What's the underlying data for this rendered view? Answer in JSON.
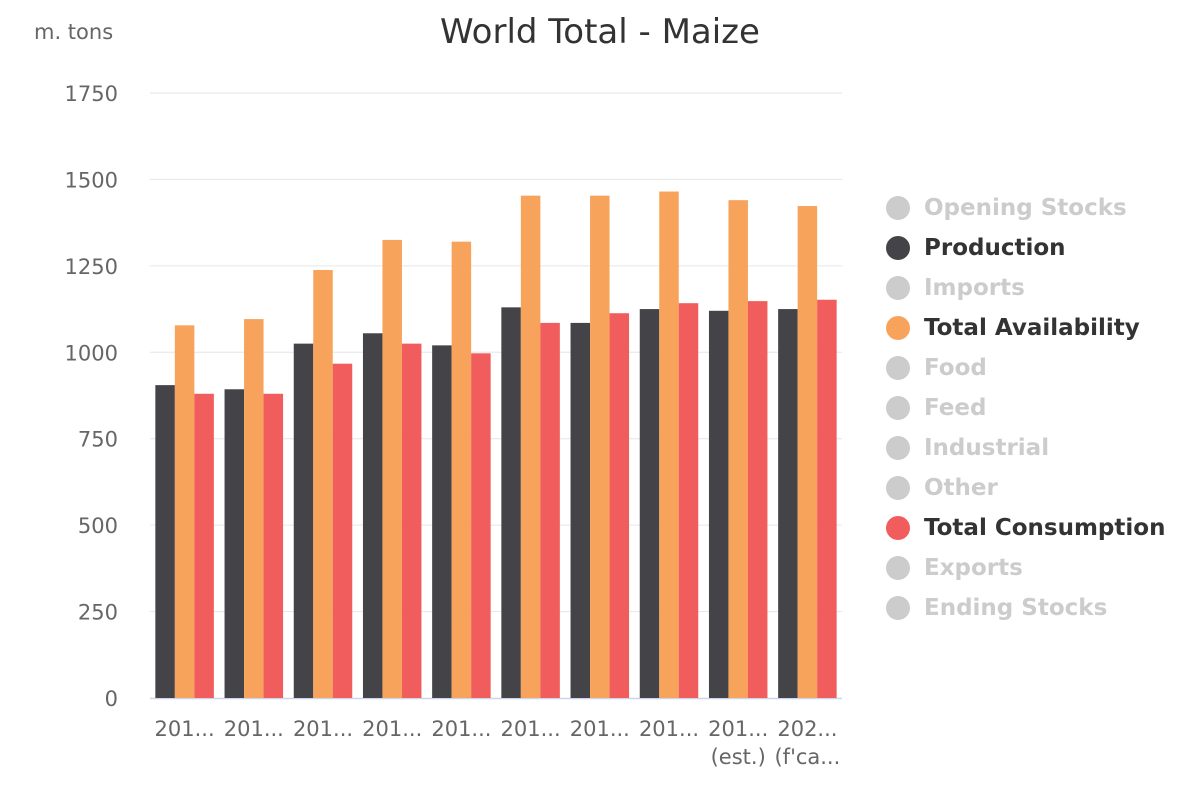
{
  "chart_data": {
    "type": "bar",
    "title": "World Total - Maize",
    "y_unit": "m. tons",
    "ylim": [
      0,
      1750
    ],
    "yticks": [
      0,
      250,
      500,
      750,
      1000,
      1250,
      1500,
      1750
    ],
    "grid": true,
    "legend_placement": "right",
    "categories": [
      [
        "201..."
      ],
      [
        "201..."
      ],
      [
        "201..."
      ],
      [
        "201..."
      ],
      [
        "201..."
      ],
      [
        "201..."
      ],
      [
        "201..."
      ],
      [
        "201..."
      ],
      [
        "201...",
        "(est.)"
      ],
      [
        "202...",
        "(f'ca..."
      ]
    ],
    "series": [
      {
        "name": "Production",
        "color": "#434348",
        "values": [
          905,
          893,
          1025,
          1055,
          1020,
          1130,
          1085,
          1125,
          1120,
          1125
        ]
      },
      {
        "name": "Total Availability",
        "color": "#f7a35c",
        "values": [
          1078,
          1096,
          1238,
          1325,
          1320,
          1453,
          1453,
          1465,
          1440,
          1423
        ]
      },
      {
        "name": "Total Consumption",
        "color": "#f15c5c",
        "values": [
          880,
          880,
          967,
          1025,
          997,
          1085,
          1113,
          1142,
          1148,
          1152
        ]
      }
    ]
  },
  "legend": {
    "items": [
      {
        "name": "Opening Stocks",
        "color": "#cccccc",
        "active": false
      },
      {
        "name": "Production",
        "color": "#434348",
        "active": true
      },
      {
        "name": "Imports",
        "color": "#cccccc",
        "active": false
      },
      {
        "name": "Total Availability",
        "color": "#f7a35c",
        "active": true
      },
      {
        "name": "Food",
        "color": "#cccccc",
        "active": false
      },
      {
        "name": "Feed",
        "color": "#cccccc",
        "active": false
      },
      {
        "name": "Industrial",
        "color": "#cccccc",
        "active": false
      },
      {
        "name": "Other",
        "color": "#cccccc",
        "active": false
      },
      {
        "name": "Total Consumption",
        "color": "#f15c5c",
        "active": true
      },
      {
        "name": "Exports",
        "color": "#cccccc",
        "active": false
      },
      {
        "name": "Ending Stocks",
        "color": "#cccccc",
        "active": false
      }
    ]
  }
}
